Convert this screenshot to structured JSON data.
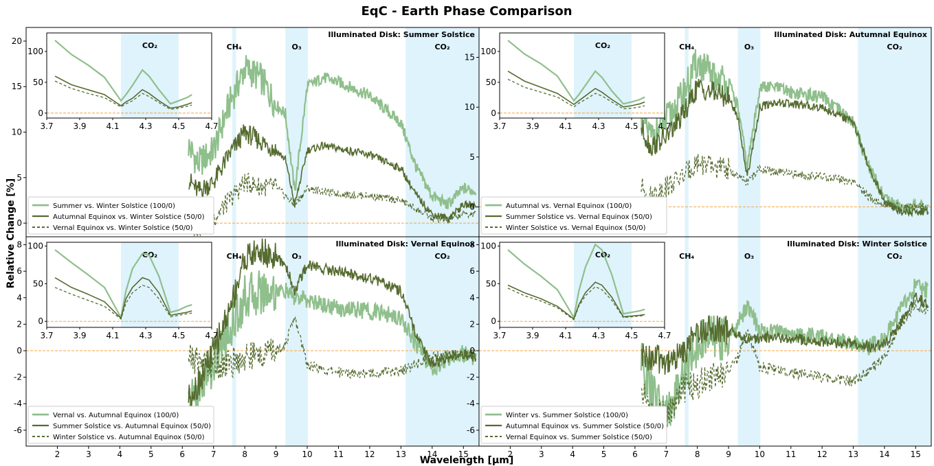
{
  "figure": {
    "title": "EqC - Earth Phase Comparison",
    "xlabel": "Wavelength [μm]",
    "ylabel": "Relative Change [%]"
  },
  "colors": {
    "light": "#8fbf8c",
    "dark": "#556b2f",
    "band": "#dff3fc",
    "zero": "#f5a340",
    "frame": "#000000"
  },
  "bands": {
    "labels": {
      "ch4": "CH₄",
      "o3": "O₃",
      "co2": "CO₂"
    },
    "ch4": [
      7.6,
      7.72
    ],
    "o3": [
      9.3,
      10.02
    ],
    "co2": [
      13.15,
      15.5
    ],
    "inset_co2": [
      4.15,
      4.5
    ]
  },
  "chart_data": [
    {
      "type": "line",
      "title": "Illuminated Disk: Summer Solstice",
      "xlim": [
        1.0,
        15.5
      ],
      "ylim": [
        -1.5,
        21.5
      ],
      "yticks": [
        0,
        5,
        10,
        15,
        20
      ],
      "xticks": [
        2,
        3,
        4,
        5,
        6,
        7,
        8,
        9,
        10,
        11,
        12,
        13,
        14,
        15
      ],
      "legend": "lower-left",
      "series": [
        {
          "name": "Summer vs. Winter Solstice (100/0)",
          "style": "light",
          "x": [
            6.2,
            6.5,
            7.0,
            7.5,
            8.0,
            8.5,
            9.0,
            9.3,
            9.6,
            10.0,
            10.5,
            11.0,
            12.0,
            13.0,
            13.5,
            14.0,
            14.5,
            15.0,
            15.4
          ],
          "y": [
            8.5,
            6.5,
            8.0,
            13.0,
            17.0,
            16.0,
            13.0,
            12.0,
            3.5,
            15.0,
            16.0,
            15.5,
            14.0,
            11.0,
            6.0,
            3.0,
            2.0,
            3.8,
            3.5
          ]
        },
        {
          "name": "Autumnal Equinox vs. Winter Solstice (50/0)",
          "style": "dark",
          "x": [
            6.2,
            6.5,
            7.0,
            7.5,
            8.0,
            8.5,
            9.0,
            9.3,
            9.6,
            10.0,
            10.5,
            11.0,
            12.0,
            13.0,
            13.5,
            14.0,
            14.5,
            15.0,
            15.4
          ],
          "y": [
            4.8,
            3.5,
            4.5,
            7.5,
            10.0,
            9.0,
            8.0,
            7.0,
            2.0,
            8.0,
            8.5,
            8.2,
            7.5,
            6.0,
            3.0,
            1.0,
            0.5,
            2.0,
            2.0
          ]
        },
        {
          "name": "Vernal Equinox vs. Winter Solstice (50/0)",
          "style": "dashed",
          "x": [
            6.2,
            6.5,
            7.0,
            7.5,
            8.0,
            8.5,
            9.0,
            9.3,
            9.6,
            10.0,
            10.5,
            11.0,
            12.0,
            13.0,
            13.5,
            14.0,
            14.5,
            15.0,
            15.4
          ],
          "y": [
            -0.3,
            -0.5,
            0.5,
            2.5,
            4.5,
            4.0,
            4.0,
            3.0,
            2.0,
            3.8,
            3.5,
            3.2,
            3.0,
            2.5,
            1.5,
            0.5,
            0.3,
            1.0,
            1.0
          ]
        }
      ],
      "inset": {
        "xlim": [
          3.7,
          4.7
        ],
        "ylim": [
          -8,
          130
        ],
        "xticks": [
          "3.7",
          "3.9",
          "4.1",
          "4.3",
          "4.5",
          "4.7"
        ],
        "yticks": [
          0,
          50,
          100
        ],
        "x": [
          3.75,
          3.85,
          3.95,
          4.05,
          4.15,
          4.18,
          4.22,
          4.28,
          4.32,
          4.38,
          4.45,
          4.5,
          4.55,
          4.58
        ],
        "light": [
          118,
          95,
          78,
          58,
          20,
          30,
          45,
          70,
          60,
          38,
          15,
          20,
          25,
          30
        ],
        "dark": [
          60,
          46,
          38,
          30,
          12,
          18,
          24,
          38,
          32,
          20,
          8,
          10,
          14,
          17
        ],
        "dashed": [
          52,
          40,
          32,
          25,
          10,
          15,
          20,
          32,
          27,
          17,
          6,
          8,
          11,
          13
        ]
      }
    },
    {
      "type": "line",
      "title": "Illuminated Disk: Autumnal Equinox",
      "xlim": [
        1.0,
        15.5
      ],
      "ylim": [
        -3.0,
        18.0
      ],
      "yticks": [
        0,
        5,
        10,
        15
      ],
      "xticks": [
        2,
        3,
        4,
        5,
        6,
        7,
        8,
        9,
        10,
        11,
        12,
        13,
        14,
        15
      ],
      "legend": "lower-left",
      "series": [
        {
          "name": "Autumnal vs. Vernal Equinox (100/0)",
          "style": "light",
          "x": [
            6.2,
            6.5,
            7.0,
            7.5,
            8.0,
            8.5,
            9.0,
            9.3,
            9.6,
            10.0,
            10.5,
            11.0,
            12.0,
            13.0,
            13.5,
            14.0,
            14.5,
            15.0,
            15.4
          ],
          "y": [
            9.0,
            7.0,
            8.5,
            11.0,
            14.5,
            13.0,
            12.5,
            10.0,
            4.0,
            12.0,
            12.0,
            11.5,
            11.0,
            8.5,
            4.0,
            1.0,
            0.0,
            0.0,
            0.0
          ]
        },
        {
          "name": "Summer Solstice vs. Vernal Equinox (50/0)",
          "style": "dark",
          "x": [
            6.2,
            6.5,
            7.0,
            7.5,
            8.0,
            8.5,
            9.0,
            9.3,
            9.6,
            10.0,
            10.5,
            11.0,
            12.0,
            13.0,
            13.5,
            14.0,
            14.5,
            15.0,
            15.4
          ],
          "y": [
            8.0,
            6.0,
            7.0,
            9.0,
            12.0,
            11.5,
            11.0,
            9.0,
            3.0,
            10.0,
            10.5,
            10.3,
            10.0,
            8.5,
            4.0,
            0.5,
            -0.5,
            -0.5,
            -0.5
          ]
        },
        {
          "name": "Winter Solstice vs. Vernal Equinox (50/0)",
          "style": "dashed",
          "x": [
            6.2,
            6.5,
            7.0,
            7.5,
            8.0,
            8.5,
            9.0,
            9.3,
            9.6,
            10.0,
            10.5,
            11.0,
            12.0,
            13.0,
            13.5,
            14.0,
            14.5,
            15.0,
            15.4
          ],
          "y": [
            2.0,
            1.0,
            2.0,
            3.0,
            4.5,
            4.0,
            3.8,
            3.0,
            2.5,
            3.8,
            3.5,
            3.3,
            3.0,
            2.5,
            1.0,
            0.2,
            0.0,
            0.0,
            0.0
          ]
        }
      ],
      "inset": {
        "xlim": [
          3.7,
          4.7
        ],
        "ylim": [
          -8,
          130
        ],
        "xticks": [
          "3.7",
          "3.9",
          "4.1",
          "4.3",
          "4.5",
          "4.7"
        ],
        "yticks": [
          0,
          50,
          100
        ],
        "x": [
          3.75,
          3.85,
          3.95,
          4.05,
          4.15,
          4.18,
          4.22,
          4.28,
          4.32,
          4.38,
          4.45,
          4.5,
          4.55,
          4.58
        ],
        "light": [
          118,
          96,
          80,
          60,
          20,
          30,
          45,
          68,
          58,
          36,
          15,
          18,
          22,
          26
        ],
        "dark": [
          68,
          52,
          42,
          32,
          14,
          20,
          28,
          40,
          34,
          22,
          10,
          12,
          15,
          18
        ],
        "dashed": [
          55,
          42,
          34,
          26,
          10,
          16,
          22,
          32,
          28,
          18,
          7,
          8,
          10,
          12
        ]
      }
    },
    {
      "type": "line",
      "title": "Illuminated Disk: Vernal Equinox",
      "xlim": [
        1.0,
        15.5
      ],
      "ylim": [
        -7.2,
        8.6
      ],
      "yticks": [
        -6,
        -4,
        -2,
        0,
        2,
        4,
        6,
        8
      ],
      "xticks": [
        2,
        3,
        4,
        5,
        6,
        7,
        8,
        9,
        10,
        11,
        12,
        13,
        14,
        15
      ],
      "legend": "lower-left",
      "series": [
        {
          "name": "Vernal vs. Autumnal Equinox (100/0)",
          "style": "light",
          "x": [
            6.2,
            6.5,
            7.0,
            7.5,
            8.0,
            8.5,
            9.0,
            9.3,
            9.6,
            10.0,
            10.5,
            11.0,
            12.0,
            13.0,
            13.5,
            14.0,
            14.5,
            15.0,
            15.4
          ],
          "y": [
            -4.0,
            -3.0,
            -1.0,
            1.5,
            4.0,
            4.5,
            4.5,
            4.5,
            4.0,
            3.8,
            3.5,
            3.2,
            3.0,
            2.5,
            0.5,
            -1.5,
            -0.5,
            -0.2,
            -0.5
          ]
        },
        {
          "name": "Summer Solstice vs. Autumnal Equinox (50/0)",
          "style": "dark",
          "x": [
            6.2,
            6.5,
            7.0,
            7.5,
            8.0,
            8.5,
            9.0,
            9.3,
            9.6,
            10.0,
            10.5,
            11.0,
            12.0,
            13.0,
            13.5,
            14.0,
            14.5,
            15.0,
            15.4
          ],
          "y": [
            -3.5,
            -2.5,
            0.0,
            3.0,
            7.0,
            7.5,
            7.0,
            6.5,
            4.5,
            6.5,
            6.2,
            6.0,
            5.5,
            4.5,
            1.0,
            -1.0,
            -0.5,
            -0.2,
            -0.5
          ]
        },
        {
          "name": "Winter Solstice vs. Autumnal Equinox (50/0)",
          "style": "dashed",
          "x": [
            6.2,
            6.5,
            7.0,
            7.5,
            8.0,
            8.5,
            9.0,
            9.3,
            9.6,
            10.0,
            10.5,
            11.0,
            12.0,
            13.0,
            13.5,
            14.0,
            14.5,
            15.0,
            15.4
          ],
          "y": [
            -0.5,
            -0.8,
            -1.0,
            -1.0,
            -0.5,
            -0.3,
            0.0,
            0.5,
            2.5,
            -1.0,
            -1.5,
            -1.6,
            -1.7,
            -1.5,
            -1.0,
            -0.5,
            -0.3,
            -0.2,
            -0.3
          ]
        }
      ],
      "inset": {
        "xlim": [
          3.7,
          4.7
        ],
        "ylim": [
          -8,
          105
        ],
        "xticks": [
          "3.7",
          "3.9",
          "4.1",
          "4.3",
          "4.5",
          "4.7"
        ],
        "yticks": [
          0,
          50,
          100
        ],
        "x": [
          3.75,
          3.85,
          3.95,
          4.05,
          4.15,
          4.18,
          4.22,
          4.28,
          4.32,
          4.38,
          4.45,
          4.5,
          4.55,
          4.58
        ],
        "light": [
          95,
          78,
          62,
          45,
          5,
          40,
          70,
          90,
          88,
          60,
          12,
          15,
          20,
          22
        ],
        "dark": [
          58,
          45,
          36,
          26,
          4,
          30,
          45,
          58,
          55,
          38,
          8,
          10,
          12,
          14
        ],
        "dashed": [
          45,
          36,
          28,
          20,
          3,
          24,
          38,
          48,
          45,
          30,
          6,
          8,
          10,
          11
        ]
      }
    },
    {
      "type": "line",
      "title": "Illuminated Disk: Winter Solstice",
      "xlim": [
        1.0,
        15.5
      ],
      "ylim": [
        -7.2,
        8.6
      ],
      "yticks": [
        -6,
        -4,
        -2,
        0,
        2,
        4,
        6,
        8
      ],
      "xticks": [
        2,
        3,
        4,
        5,
        6,
        7,
        8,
        9,
        10,
        11,
        12,
        13,
        14,
        15
      ],
      "legend": "lower-left",
      "series": [
        {
          "name": "Winter vs. Summer Solstice (100/0)",
          "style": "light",
          "x": [
            6.2,
            6.5,
            7.0,
            7.5,
            8.0,
            8.5,
            9.0,
            9.3,
            9.6,
            10.0,
            10.5,
            11.0,
            12.0,
            13.0,
            13.5,
            14.0,
            14.5,
            15.0,
            15.4
          ],
          "y": [
            -1.0,
            -3.0,
            -5.0,
            -2.0,
            0.5,
            1.0,
            1.0,
            2.0,
            3.5,
            1.5,
            1.5,
            1.3,
            1.0,
            0.5,
            0.3,
            1.0,
            3.0,
            5.0,
            4.5
          ]
        },
        {
          "name": "Autumnal Equinox vs. Summer Solstice (50/0)",
          "style": "dark",
          "x": [
            6.2,
            6.5,
            7.0,
            7.5,
            8.0,
            8.5,
            9.0,
            9.3,
            9.6,
            10.0,
            10.5,
            11.0,
            12.0,
            13.0,
            13.5,
            14.0,
            14.5,
            15.0,
            15.4
          ],
          "y": [
            -0.5,
            -0.5,
            -0.8,
            -0.3,
            1.5,
            1.8,
            1.5,
            1.2,
            0.8,
            1.0,
            1.0,
            0.9,
            0.7,
            0.5,
            0.3,
            0.5,
            2.0,
            4.0,
            3.5
          ]
        },
        {
          "name": "Vernal Equinox vs. Summer Solstice (50/0)",
          "style": "dashed",
          "x": [
            6.2,
            6.5,
            7.0,
            7.5,
            8.0,
            8.5,
            9.0,
            9.3,
            9.6,
            10.0,
            10.5,
            11.0,
            12.0,
            13.0,
            13.5,
            14.0,
            14.5,
            15.0,
            15.4
          ],
          "y": [
            -3.0,
            -4.5,
            -5.0,
            -3.0,
            -2.5,
            -2.0,
            -1.5,
            -0.5,
            1.5,
            -1.2,
            -1.5,
            -1.7,
            -2.0,
            -2.3,
            -1.5,
            -0.5,
            2.0,
            3.5,
            3.0
          ]
        }
      ],
      "inset": {
        "xlim": [
          3.7,
          4.7
        ],
        "ylim": [
          -8,
          105
        ],
        "xticks": [
          "3.7",
          "3.9",
          "4.1",
          "4.3",
          "4.5",
          "4.7"
        ],
        "yticks": [
          0,
          50,
          100
        ],
        "x": [
          3.75,
          3.85,
          3.95,
          4.05,
          4.15,
          4.18,
          4.22,
          4.28,
          4.32,
          4.38,
          4.45,
          4.5,
          4.55,
          4.58
        ],
        "light": [
          95,
          76,
          60,
          42,
          5,
          40,
          72,
          102,
          95,
          62,
          10,
          12,
          14,
          16
        ],
        "dark": [
          48,
          38,
          30,
          20,
          3,
          22,
          38,
          52,
          48,
          32,
          6,
          7,
          8,
          9
        ],
        "dashed": [
          44,
          34,
          27,
          18,
          2,
          20,
          34,
          46,
          42,
          28,
          5,
          6,
          7,
          8
        ]
      }
    }
  ]
}
